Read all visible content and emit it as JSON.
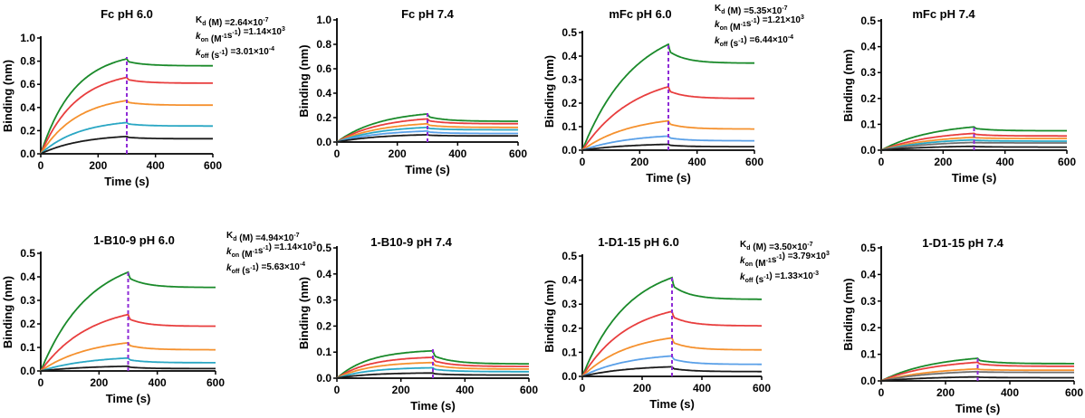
{
  "figure": {
    "colors": {
      "green": "#1a8a2a",
      "red": "#e83e3e",
      "orange": "#f5912e",
      "cyan": "#2aa7c4",
      "blue": "#5aa0e8",
      "gray": "#707070",
      "black": "#1a1a1a",
      "marker": "#8e2bd6"
    }
  },
  "chart_data": [
    {
      "id": "fc-ph6",
      "type": "line",
      "title": "Fc pH 6.0",
      "xlabel": "Time (s)",
      "ylabel": "Binding (nm)",
      "xlim": [
        0,
        600
      ],
      "ylim": [
        0,
        1.0
      ],
      "xticks": [
        0,
        200,
        400,
        600
      ],
      "yticks": [
        0.0,
        0.2,
        0.4,
        0.6,
        0.8,
        1.0
      ],
      "ytick_labels": [
        "0.0",
        "0.2",
        "0.4",
        "0.6",
        "0.8",
        "1.0"
      ],
      "switch_time": 300,
      "kinetics": {
        "kd_label": "K",
        "kd_sub": "d",
        "kd_unit": " (M) =",
        "kd_value": "2.64×10",
        "kd_exp": "-7",
        "kon_label": "k",
        "kon_sub": "on",
        "kon_unit": " (M",
        "kon_unit_exp": "-1",
        "kon_unit2": "s",
        "kon_unit2_exp": "-1",
        "kon_unit3": ") =",
        "kon_value": "1.14×10",
        "kon_exp": "3",
        "koff_label": "k",
        "koff_sub": "off",
        "koff_unit": " (s",
        "koff_unit_exp": "-1",
        "koff_unit2": ") =",
        "koff_value": "3.01×10",
        "koff_exp": "-4"
      },
      "series": [
        {
          "name": "conc-1",
          "color": "green",
          "peak": 0.82,
          "end": 0.76,
          "k": 0.0085
        },
        {
          "name": "conc-2",
          "color": "red",
          "peak": 0.66,
          "end": 0.61,
          "k": 0.008
        },
        {
          "name": "conc-3",
          "color": "orange",
          "peak": 0.46,
          "end": 0.42,
          "k": 0.0078
        },
        {
          "name": "conc-4",
          "color": "cyan",
          "peak": 0.27,
          "end": 0.24,
          "k": 0.0075
        },
        {
          "name": "conc-5",
          "color": "black",
          "peak": 0.15,
          "end": 0.13,
          "k": 0.007
        }
      ]
    },
    {
      "id": "fc-ph74",
      "type": "line",
      "title": "Fc pH 7.4",
      "xlabel": "Time (s)",
      "ylabel": "Binding (nm)",
      "xlim": [
        0,
        600
      ],
      "ylim": [
        0,
        1.0
      ],
      "xticks": [
        0,
        200,
        400,
        600
      ],
      "yticks": [
        0.0,
        0.2,
        0.4,
        0.6,
        0.8,
        1.0
      ],
      "ytick_labels": [
        "0.0",
        "0.2",
        "0.4",
        "0.6",
        "0.8",
        "1.0"
      ],
      "switch_time": 300,
      "kinetics": null,
      "series": [
        {
          "name": "conc-1",
          "color": "green",
          "peak": 0.23,
          "end": 0.17,
          "k": 0.007
        },
        {
          "name": "conc-2",
          "color": "red",
          "peak": 0.19,
          "end": 0.15,
          "k": 0.007
        },
        {
          "name": "conc-3",
          "color": "orange",
          "peak": 0.15,
          "end": 0.12,
          "k": 0.007
        },
        {
          "name": "conc-4",
          "color": "cyan",
          "peak": 0.12,
          "end": 0.1,
          "k": 0.007
        },
        {
          "name": "conc-5",
          "color": "blue",
          "peak": 0.09,
          "end": 0.07,
          "k": 0.007
        },
        {
          "name": "conc-6",
          "color": "black",
          "peak": 0.06,
          "end": 0.05,
          "k": 0.007
        }
      ]
    },
    {
      "id": "mfc-ph6",
      "type": "line",
      "title": "mFc pH 6.0",
      "xlabel": "Time (s)",
      "ylabel": "Binding (nm)",
      "xlim": [
        0,
        600
      ],
      "ylim": [
        0,
        0.5
      ],
      "xticks": [
        0,
        200,
        400,
        600
      ],
      "yticks": [
        0.0,
        0.1,
        0.2,
        0.3,
        0.4,
        0.5
      ],
      "ytick_labels": [
        "0.0",
        "0.1",
        "0.2",
        "0.3",
        "0.4",
        "0.5"
      ],
      "switch_time": 300,
      "kinetics": {
        "kd_label": "K",
        "kd_sub": "d",
        "kd_unit": " (M) =",
        "kd_value": "5.35×10",
        "kd_exp": "-7",
        "kon_label": "k",
        "kon_sub": "on",
        "kon_unit": " (M",
        "kon_unit_exp": "-1",
        "kon_unit2": "s",
        "kon_unit2_exp": "-1",
        "kon_unit3": ") =",
        "kon_value": "1.21×10",
        "kon_exp": "3",
        "koff_label": "k",
        "koff_sub": "off",
        "koff_unit": " (s",
        "koff_unit_exp": "-1",
        "koff_unit2": ") =",
        "koff_value": "6.44×10",
        "koff_exp": "-4"
      },
      "series": [
        {
          "name": "conc-1",
          "color": "green",
          "peak": 0.45,
          "end": 0.37,
          "k": 0.0055
        },
        {
          "name": "conc-2",
          "color": "red",
          "peak": 0.27,
          "end": 0.22,
          "k": 0.0055
        },
        {
          "name": "conc-3",
          "color": "orange",
          "peak": 0.125,
          "end": 0.09,
          "k": 0.006
        },
        {
          "name": "conc-4",
          "color": "blue",
          "peak": 0.06,
          "end": 0.04,
          "k": 0.006
        },
        {
          "name": "conc-5",
          "color": "black",
          "peak": 0.025,
          "end": 0.015,
          "k": 0.006
        }
      ]
    },
    {
      "id": "mfc-ph74",
      "type": "line",
      "title": "mFc pH 7.4",
      "xlabel": "Time (s)",
      "ylabel": "Binding (nm)",
      "xlim": [
        0,
        600
      ],
      "ylim": [
        0,
        0.5
      ],
      "xticks": [
        0,
        200,
        400,
        600
      ],
      "yticks": [
        0.0,
        0.1,
        0.2,
        0.3,
        0.4,
        0.5
      ],
      "ytick_labels": [
        "0.0",
        "0.1",
        "0.2",
        "0.3",
        "0.4",
        "0.5"
      ],
      "switch_time": 300,
      "kinetics": null,
      "series": [
        {
          "name": "conc-1",
          "color": "green",
          "peak": 0.09,
          "end": 0.075,
          "k": 0.006
        },
        {
          "name": "conc-2",
          "color": "red",
          "peak": 0.065,
          "end": 0.055,
          "k": 0.006
        },
        {
          "name": "conc-3",
          "color": "orange",
          "peak": 0.05,
          "end": 0.045,
          "k": 0.006
        },
        {
          "name": "conc-4",
          "color": "cyan",
          "peak": 0.04,
          "end": 0.035,
          "k": 0.006
        },
        {
          "name": "conc-5",
          "color": "gray",
          "peak": 0.03,
          "end": 0.028,
          "k": 0.006
        },
        {
          "name": "conc-6",
          "color": "black",
          "peak": 0.015,
          "end": 0.012,
          "k": 0.006
        }
      ]
    },
    {
      "id": "b10-ph6",
      "type": "line",
      "title": "1-B10-9  pH 6.0",
      "xlabel": "Time (s)",
      "ylabel": "Binding (nm)",
      "xlim": [
        0,
        600
      ],
      "ylim": [
        0,
        0.5
      ],
      "xticks": [
        0,
        200,
        400,
        600
      ],
      "yticks": [
        0.0,
        0.1,
        0.2,
        0.3,
        0.4,
        0.5
      ],
      "ytick_labels": [
        "0.0",
        "0.1",
        "0.2",
        "0.3",
        "0.4",
        "0.5"
      ],
      "switch_time": 300,
      "kinetics": {
        "kd_label": "K",
        "kd_sub": "d",
        "kd_unit": " (M) =",
        "kd_value": "4.94×10",
        "kd_exp": "-7",
        "kon_label": "k",
        "kon_sub": "on",
        "kon_unit": " (M",
        "kon_unit_exp": "-1",
        "kon_unit2": "s",
        "kon_unit2_exp": "-1",
        "kon_unit3": ") =",
        "kon_value": "1.14×10",
        "kon_exp": "3",
        "koff_label": "k",
        "koff_sub": "off",
        "koff_unit": " (s",
        "koff_unit_exp": "-1",
        "koff_unit2": ") =",
        "koff_value": "5.63×10",
        "koff_exp": "-4"
      },
      "series": [
        {
          "name": "conc-1",
          "color": "green",
          "peak": 0.42,
          "end": 0.355,
          "k": 0.006
        },
        {
          "name": "conc-2",
          "color": "red",
          "peak": 0.24,
          "end": 0.19,
          "k": 0.006
        },
        {
          "name": "conc-3",
          "color": "orange",
          "peak": 0.12,
          "end": 0.09,
          "k": 0.006
        },
        {
          "name": "conc-4",
          "color": "cyan",
          "peak": 0.055,
          "end": 0.035,
          "k": 0.006
        },
        {
          "name": "conc-5",
          "color": "black",
          "peak": 0.02,
          "end": 0.01,
          "k": 0.006
        }
      ]
    },
    {
      "id": "b10-ph74",
      "type": "line",
      "title": "1-B10-9  pH 7.4",
      "xlabel": "Time (s)",
      "ylabel": "Binding (nm)",
      "xlim": [
        0,
        600
      ],
      "ylim": [
        0,
        0.5
      ],
      "xticks": [
        0,
        200,
        400,
        600
      ],
      "yticks": [
        0.0,
        0.1,
        0.2,
        0.3,
        0.4,
        0.5
      ],
      "ytick_labels": [
        "0.0",
        "0.1",
        "0.2",
        "0.3",
        "0.4",
        "0.5"
      ],
      "switch_time": 300,
      "kinetics": null,
      "series": [
        {
          "name": "conc-1",
          "color": "green",
          "peak": 0.105,
          "end": 0.055,
          "k": 0.01
        },
        {
          "name": "conc-2",
          "color": "red",
          "peak": 0.08,
          "end": 0.045,
          "k": 0.01
        },
        {
          "name": "conc-3",
          "color": "orange",
          "peak": 0.06,
          "end": 0.035,
          "k": 0.01
        },
        {
          "name": "conc-4",
          "color": "cyan",
          "peak": 0.04,
          "end": 0.025,
          "k": 0.01
        },
        {
          "name": "conc-5",
          "color": "black",
          "peak": 0.02,
          "end": 0.012,
          "k": 0.01
        }
      ]
    },
    {
      "id": "d1-ph6",
      "type": "line",
      "title": "1-D1-15  pH 6.0",
      "xlabel": "Time (s)",
      "ylabel": "Binding (nm)",
      "xlim": [
        0,
        600
      ],
      "ylim": [
        0,
        0.5
      ],
      "xticks": [
        0,
        200,
        400,
        600
      ],
      "yticks": [
        0.0,
        0.1,
        0.2,
        0.3,
        0.4,
        0.5
      ],
      "ytick_labels": [
        "0.0",
        "0.1",
        "0.2",
        "0.3",
        "0.4",
        "0.5"
      ],
      "switch_time": 300,
      "kinetics": {
        "kd_label": "K",
        "kd_sub": "d",
        "kd_unit": " (M) =",
        "kd_value": "3.50×10",
        "kd_exp": "-7",
        "kon_label": "k",
        "kon_sub": "on",
        "kon_unit": " (M",
        "kon_unit_exp": "-1",
        "kon_unit2": "s",
        "kon_unit2_exp": "-1",
        "kon_unit3": ") =",
        "kon_value": "3.79×10",
        "kon_exp": "3",
        "koff_label": "k",
        "koff_sub": "off",
        "koff_unit": " (s",
        "koff_unit_exp": "-1",
        "koff_unit2": ") =",
        "koff_value": "1.33×10",
        "koff_exp": "-3"
      },
      "series": [
        {
          "name": "conc-1",
          "color": "green",
          "peak": 0.41,
          "end": 0.32,
          "k": 0.0065
        },
        {
          "name": "conc-2",
          "color": "red",
          "peak": 0.27,
          "end": 0.21,
          "k": 0.0065
        },
        {
          "name": "conc-3",
          "color": "orange",
          "peak": 0.16,
          "end": 0.11,
          "k": 0.0065
        },
        {
          "name": "conc-4",
          "color": "blue",
          "peak": 0.085,
          "end": 0.05,
          "k": 0.0065
        },
        {
          "name": "conc-5",
          "color": "black",
          "peak": 0.04,
          "end": 0.02,
          "k": 0.0065
        }
      ]
    },
    {
      "id": "d1-ph74",
      "type": "line",
      "title": "1-D1-15  pH 7.4",
      "xlabel": "Time (s)",
      "ylabel": "Binding (nm)",
      "xlim": [
        0,
        600
      ],
      "ylim": [
        0,
        0.5
      ],
      "xticks": [
        0,
        200,
        400,
        600
      ],
      "yticks": [
        0.0,
        0.1,
        0.2,
        0.3,
        0.4,
        0.5
      ],
      "ytick_labels": [
        "0.0",
        "0.1",
        "0.2",
        "0.3",
        "0.4",
        "0.5"
      ],
      "switch_time": 300,
      "kinetics": null,
      "series": [
        {
          "name": "conc-1",
          "color": "green",
          "peak": 0.085,
          "end": 0.065,
          "k": 0.006
        },
        {
          "name": "conc-2",
          "color": "red",
          "peak": 0.07,
          "end": 0.055,
          "k": 0.006
        },
        {
          "name": "conc-3",
          "color": "orange",
          "peak": 0.045,
          "end": 0.04,
          "k": 0.006
        },
        {
          "name": "conc-4",
          "color": "gray",
          "peak": 0.035,
          "end": 0.032,
          "k": 0.006
        },
        {
          "name": "conc-5",
          "color": "black",
          "peak": 0.015,
          "end": 0.012,
          "k": 0.006
        }
      ]
    }
  ]
}
